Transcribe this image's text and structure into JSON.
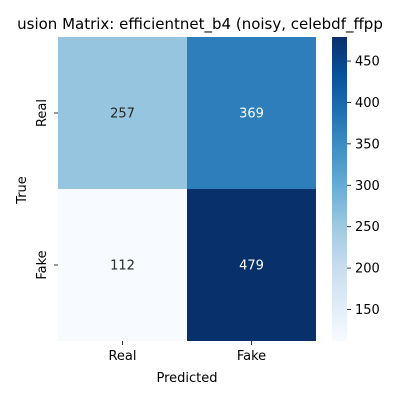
{
  "chart_data": {
    "type": "heatmap",
    "title": "usion Matrix: efficientnet_b4 (noisy, celebdf_ffpp",
    "xlabel": "Predicted",
    "ylabel": "True",
    "x_categories": [
      "Real",
      "Fake"
    ],
    "y_categories": [
      "Real",
      "Fake"
    ],
    "values": [
      [
        257,
        369
      ],
      [
        112,
        479
      ]
    ],
    "colormap": "Blues",
    "colorbar": {
      "vmin": 112,
      "vmax": 479,
      "ticks": [
        150,
        200,
        250,
        300,
        350,
        400,
        450
      ]
    }
  }
}
